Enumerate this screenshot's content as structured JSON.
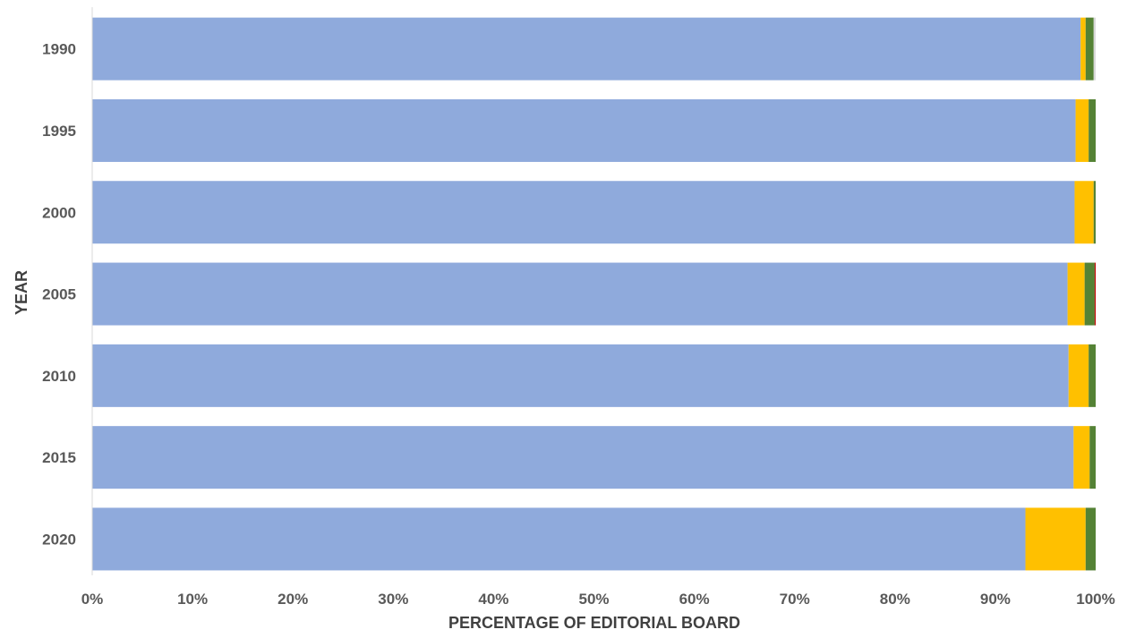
{
  "chart_data": {
    "type": "bar",
    "orientation": "horizontal",
    "stacked": true,
    "normalized": true,
    "title": "",
    "xlabel": "PERCENTAGE OF EDITORIAL BOARD",
    "ylabel": "YEAR",
    "xlim": [
      0,
      100
    ],
    "x_ticks": [
      "0%",
      "10%",
      "20%",
      "30%",
      "40%",
      "50%",
      "60%",
      "70%",
      "80%",
      "90%",
      "100%"
    ],
    "categories": [
      "1990",
      "1995",
      "2000",
      "2005",
      "2010",
      "2015",
      "2020"
    ],
    "series": [
      {
        "color": "#8faadc",
        "values": [
          98.5,
          98.0,
          97.9,
          97.2,
          97.3,
          97.8,
          93.0
        ]
      },
      {
        "color": "#ffc000",
        "values": [
          0.5,
          1.3,
          1.9,
          1.7,
          2.0,
          1.6,
          6.0
        ]
      },
      {
        "color": "#548235",
        "values": [
          0.8,
          0.7,
          0.2,
          1.0,
          0.7,
          0.6,
          1.0
        ]
      },
      {
        "color": "#c00000",
        "values": [
          0.0,
          0.0,
          0.0,
          0.1,
          0.0,
          0.0,
          0.0
        ]
      },
      {
        "color": "#d9d9d9",
        "values": [
          0.2,
          0.0,
          0.0,
          0.0,
          0.0,
          0.0,
          0.0
        ]
      }
    ],
    "grid": false,
    "legend": "none"
  }
}
